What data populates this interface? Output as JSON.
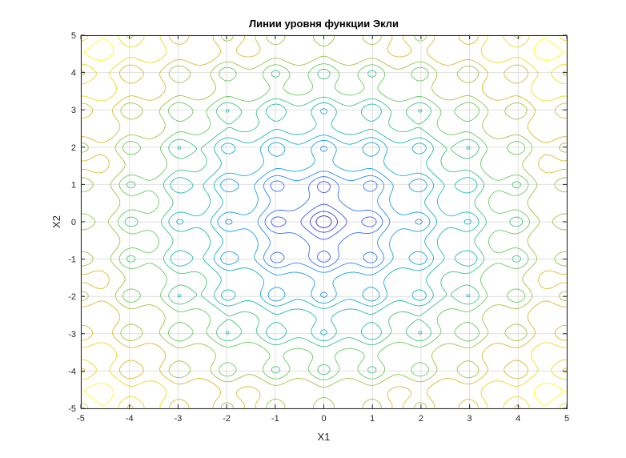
{
  "chart_data": {
    "type": "contour",
    "title": "Линии уровня функции Экли",
    "xlabel": "X1",
    "ylabel": "X2",
    "xlim": [
      -5,
      5
    ],
    "ylim": [
      -5,
      5
    ],
    "xticks": [
      "-5",
      "-4",
      "-3",
      "-2",
      "-1",
      "0",
      "1",
      "2",
      "3",
      "4",
      "5"
    ],
    "yticks": [
      "-5",
      "-4",
      "-3",
      "-2",
      "-1",
      "0",
      "1",
      "2",
      "3",
      "4",
      "5"
    ],
    "grid": true,
    "colormap": "parula",
    "levels": [
      1,
      2,
      3,
      4,
      5,
      6,
      7,
      8,
      9,
      10,
      11,
      12,
      13,
      14
    ],
    "colors": {
      "low": "#3e26a8",
      "mid": "#23b5b0",
      "high": "#f9fb15",
      "axis": "#262626",
      "grid": "#dfdfdf"
    }
  }
}
